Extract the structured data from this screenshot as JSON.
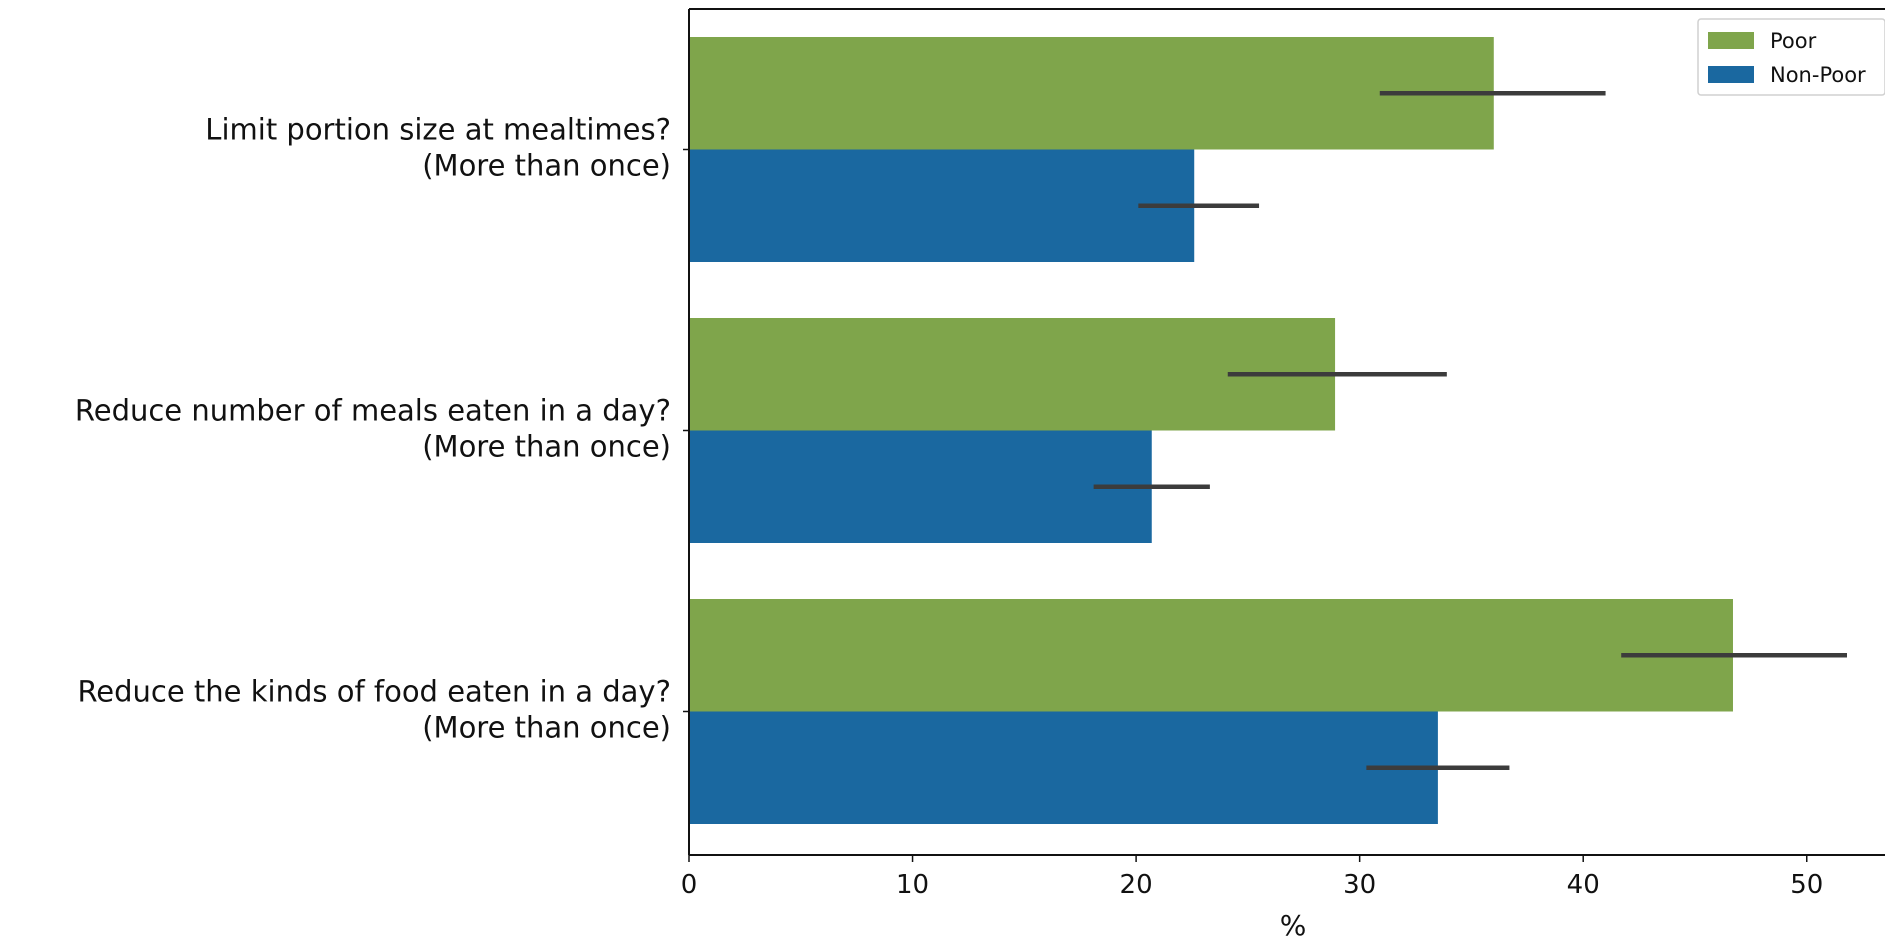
{
  "chart_data": {
    "type": "bar",
    "orientation": "horizontal",
    "categories": [
      [
        "Limit portion size at mealtimes?",
        "(More than once)"
      ],
      [
        "Reduce number of meals eaten in a day?",
        "(More than once)"
      ],
      [
        "Reduce the kinds of food eaten in a day?",
        "(More than once)"
      ]
    ],
    "series": [
      {
        "name": "Poor",
        "color": "#7fa54b",
        "values": [
          36.0,
          28.9,
          46.7
        ],
        "error_low": [
          30.9,
          24.1,
          41.7
        ],
        "error_high": [
          41.0,
          33.9,
          51.8
        ]
      },
      {
        "name": "Non-Poor",
        "color": "#1a68a0",
        "values": [
          22.6,
          20.7,
          33.5
        ],
        "error_low": [
          20.1,
          18.1,
          30.3
        ],
        "error_high": [
          25.5,
          23.3,
          36.7
        ]
      }
    ],
    "xlabel": "%",
    "xlim": [
      0,
      53.5
    ],
    "xticks": [
      0,
      10,
      20,
      30,
      40,
      50
    ],
    "error_bar_color": "#3c3c3c",
    "grid": false,
    "legend_position": "top-right"
  }
}
